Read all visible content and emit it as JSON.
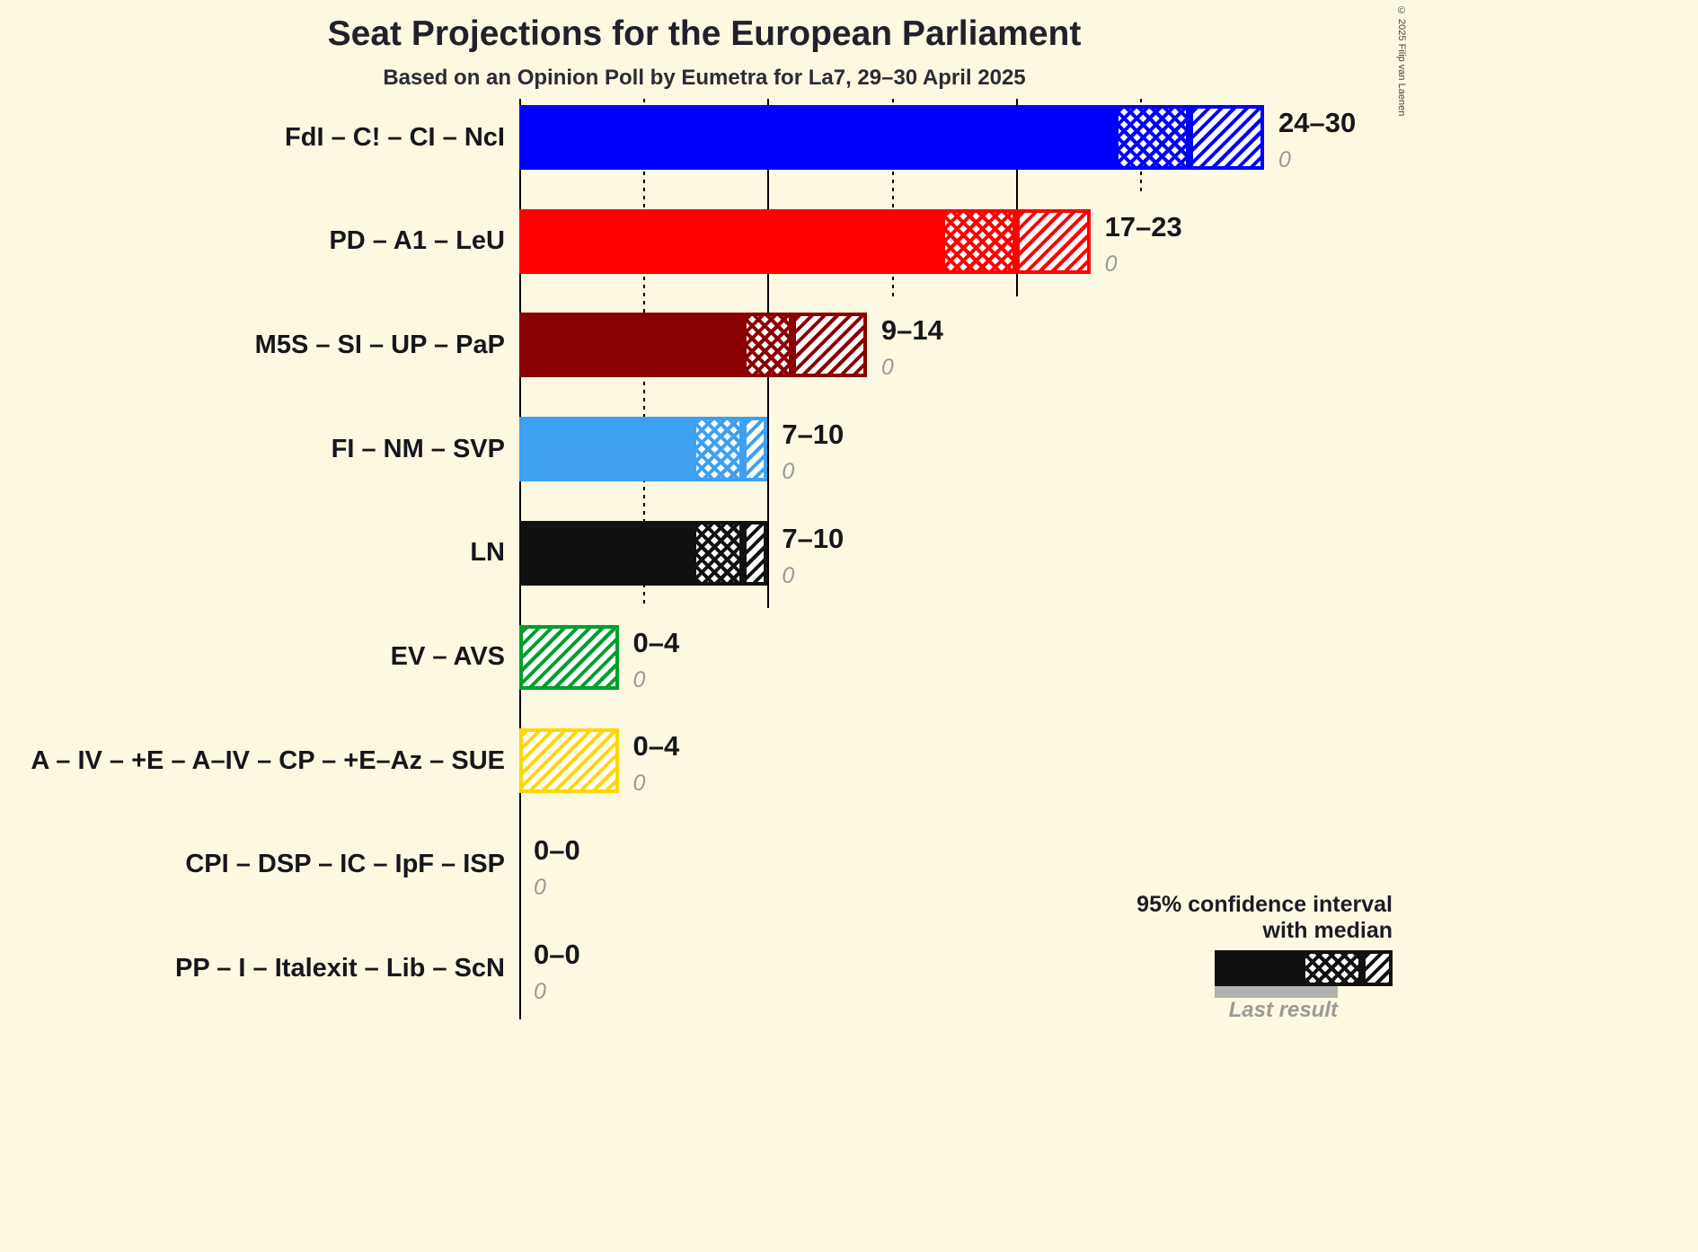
{
  "title": "Seat Projections for the European Parliament",
  "subtitle": "Based on an Opinion Poll by Eumetra for La7, 29–30 April 2025",
  "copyright": "© 2025 Filip van Laenen",
  "legend": {
    "line1": "95% confidence interval",
    "line2": "with median",
    "last_result_label": "Last result"
  },
  "chart_data": {
    "type": "bar",
    "orientation": "horizontal",
    "unit": "seats",
    "xlim": [
      0,
      30
    ],
    "gridline_step": 5,
    "solid_gridline_step": 10,
    "background_color": "#FDF8E1",
    "parties": [
      {
        "label": "FdI – C! – CI – NcI",
        "color": "#0000FF",
        "ci_low": 24,
        "median": 27,
        "ci_high": 30,
        "range_label": "24–30",
        "last_result": "0"
      },
      {
        "label": "PD – A1 – LeU",
        "color": "#FF0000",
        "ci_low": 17,
        "median": 20,
        "ci_high": 23,
        "range_label": "17–23",
        "last_result": "0"
      },
      {
        "label": "M5S – SI – UP – PaP",
        "color": "#8B0000",
        "ci_low": 9,
        "median": 11,
        "ci_high": 14,
        "range_label": "9–14",
        "last_result": "0"
      },
      {
        "label": "FI – NM – SVP",
        "color": "#3DA0F2",
        "ci_low": 7,
        "median": 9,
        "ci_high": 10,
        "range_label": "7–10",
        "last_result": "0"
      },
      {
        "label": "LN",
        "color": "#111111",
        "ci_low": 7,
        "median": 9,
        "ci_high": 10,
        "range_label": "7–10",
        "last_result": "0"
      },
      {
        "label": "EV – AVS",
        "color": "#009F2C",
        "ci_low": 0,
        "median": 0,
        "ci_high": 4,
        "range_label": "0–4",
        "last_result": "0"
      },
      {
        "label": "A – IV – +E – A–IV – CP – +E–Az – SUE",
        "color": "#FFD700",
        "ci_low": 0,
        "median": 0,
        "ci_high": 4,
        "range_label": "0–4",
        "last_result": "0"
      },
      {
        "label": "CPI – DSP – IC – IpF – ISP",
        "color": "#888888",
        "ci_low": 0,
        "median": 0,
        "ci_high": 0,
        "range_label": "0–0",
        "last_result": "0"
      },
      {
        "label": "PP – I – Italexit – Lib – ScN",
        "color": "#888888",
        "ci_low": 0,
        "median": 0,
        "ci_high": 0,
        "range_label": "0–0",
        "last_result": "0"
      }
    ]
  }
}
